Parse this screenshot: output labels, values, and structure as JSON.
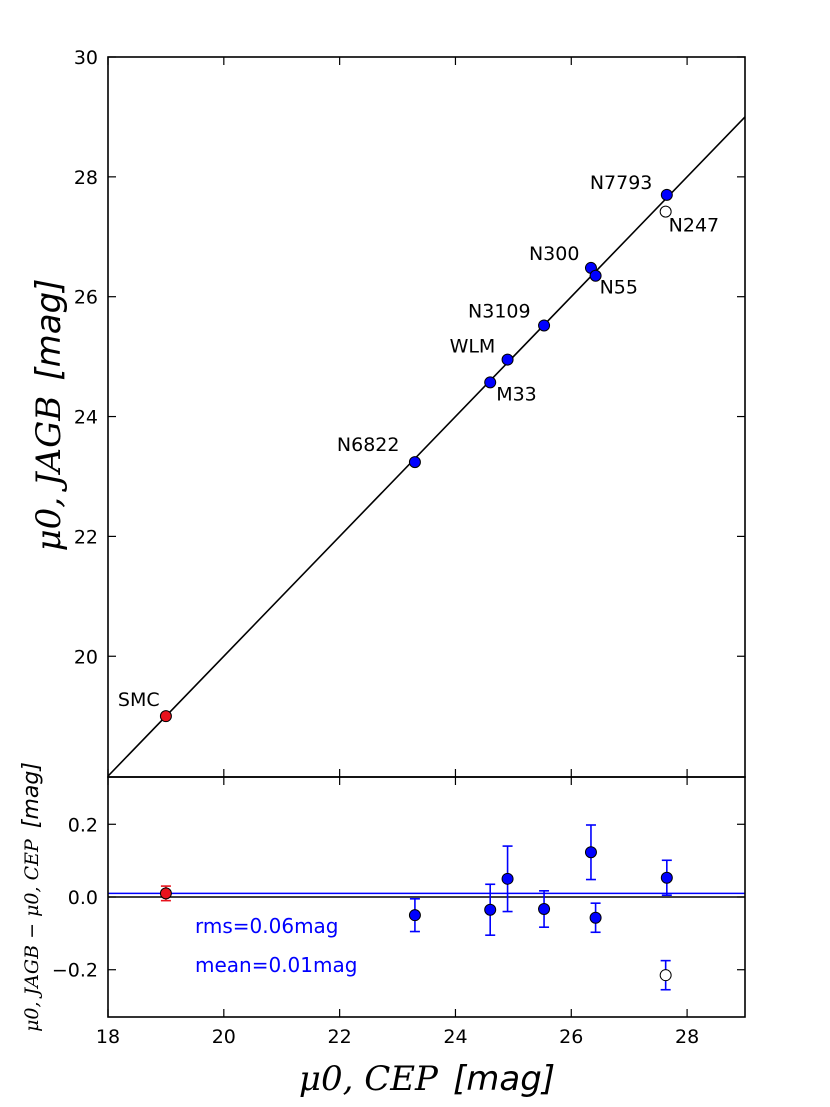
{
  "chart_data": [
    {
      "type": "scatter",
      "panel": "main",
      "ylabel_main": "μ0, JAGB",
      "ylabel_unit": "[mag]",
      "xlim": [
        18,
        29
      ],
      "ylim": [
        17.985,
        30
      ],
      "yticks": [
        20,
        22,
        24,
        26,
        28,
        30
      ],
      "reference_line": {
        "x": [
          18,
          29
        ],
        "y": [
          18,
          29
        ]
      },
      "points": [
        {
          "label": "SMC",
          "x": 19.0,
          "y": 19.0,
          "color": "#e8121c",
          "filled": true
        },
        {
          "label": "N6822",
          "x": 23.3,
          "y": 23.24,
          "color": "#0000ff",
          "filled": true
        },
        {
          "label": "M33",
          "x": 24.6,
          "y": 24.57,
          "color": "#0000ff",
          "filled": true
        },
        {
          "label": "WLM",
          "x": 24.9,
          "y": 24.95,
          "color": "#0000ff",
          "filled": true
        },
        {
          "label": "N3109",
          "x": 25.53,
          "y": 25.52,
          "color": "#0000ff",
          "filled": true
        },
        {
          "label": "N300",
          "x": 26.34,
          "y": 26.48,
          "color": "#0000ff",
          "filled": true
        },
        {
          "label": "N55",
          "x": 26.42,
          "y": 26.35,
          "color": "#0000ff",
          "filled": true
        },
        {
          "label": "N7793",
          "x": 27.65,
          "y": 27.7,
          "color": "#0000ff",
          "filled": true
        },
        {
          "label": "N247",
          "x": 27.63,
          "y": 27.42,
          "color": "#ffffff",
          "filled": false
        }
      ]
    },
    {
      "type": "scatter",
      "panel": "residual",
      "xlabel_main": "μ0, CEP",
      "xlabel_unit": "[mag]",
      "ylabel_main": "μ0, JAGB − μ0, CEP",
      "ylabel_unit": "[mag]",
      "xlim": [
        18,
        29
      ],
      "ylim": [
        -0.33,
        0.33
      ],
      "xticks": [
        18,
        20,
        22,
        24,
        26,
        28
      ],
      "yticks": [
        -0.2,
        0.0,
        0.2
      ],
      "ytick_labels": [
        "−0.2",
        "0.0",
        "0.2"
      ],
      "zero_line": 0.0,
      "mean_line": 0.01,
      "rms_text": "rms=0.06mag",
      "mean_text": "mean=0.01mag",
      "points": [
        {
          "label": "SMC",
          "x": 19.0,
          "y": 0.01,
          "err": 0.02,
          "color": "#e8121c",
          "filled": true
        },
        {
          "label": "N6822",
          "x": 23.3,
          "y": -0.05,
          "err": 0.045,
          "color": "#0000ff",
          "filled": true
        },
        {
          "label": "M33",
          "x": 24.6,
          "y": -0.035,
          "err": 0.07,
          "color": "#0000ff",
          "filled": true
        },
        {
          "label": "WLM",
          "x": 24.9,
          "y": 0.05,
          "err": 0.09,
          "color": "#0000ff",
          "filled": true
        },
        {
          "label": "N3109",
          "x": 25.53,
          "y": -0.033,
          "err": 0.05,
          "color": "#0000ff",
          "filled": true
        },
        {
          "label": "N300",
          "x": 26.34,
          "y": 0.123,
          "err": 0.075,
          "color": "#0000ff",
          "filled": true
        },
        {
          "label": "N55",
          "x": 26.42,
          "y": -0.057,
          "err": 0.04,
          "color": "#0000ff",
          "filled": true
        },
        {
          "label": "N7793",
          "x": 27.65,
          "y": 0.053,
          "err": 0.048,
          "color": "#0000ff",
          "filled": true
        },
        {
          "label": "N247",
          "x": 27.63,
          "y": -0.215,
          "err": 0.04,
          "color": "#ffffff",
          "filled": false
        }
      ]
    }
  ]
}
